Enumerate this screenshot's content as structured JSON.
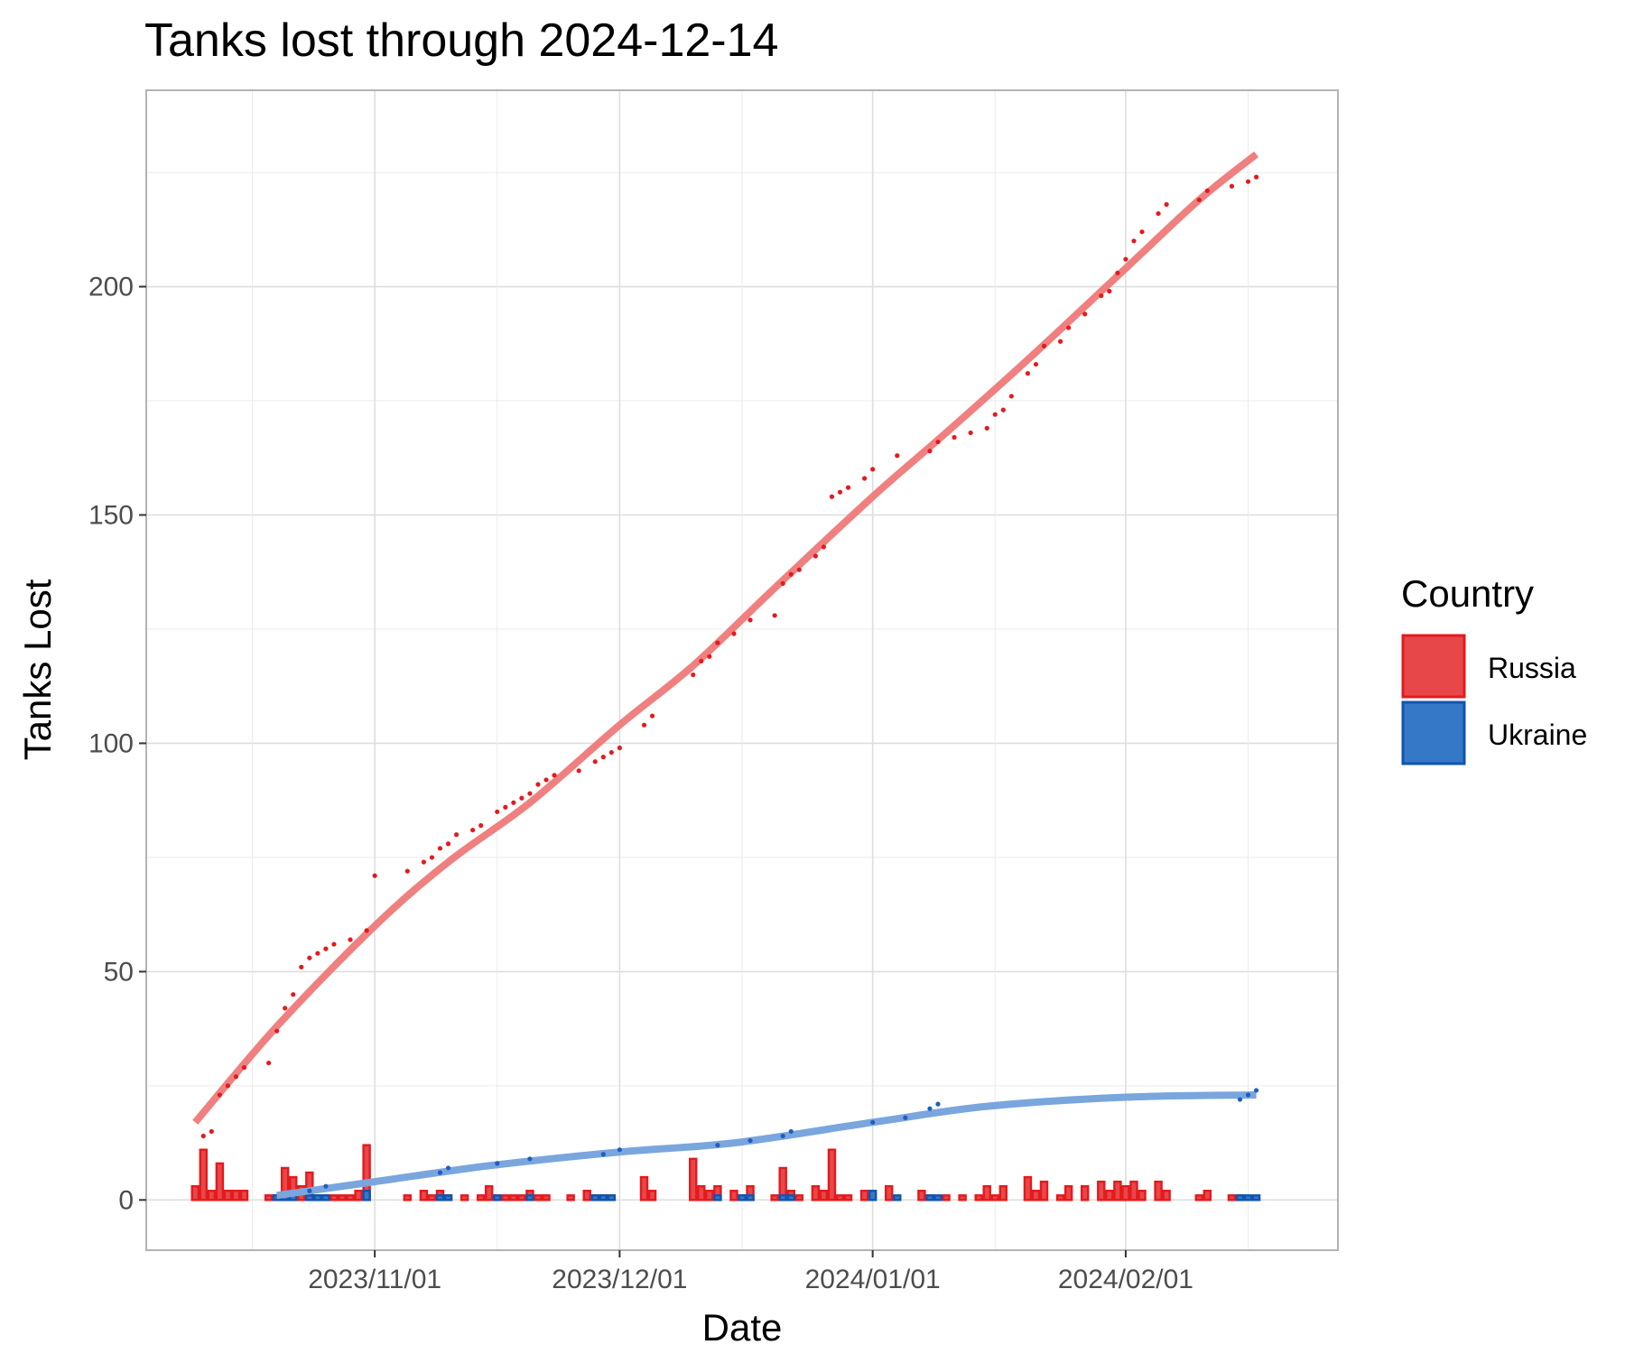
{
  "chart_data": {
    "type": "line",
    "title": "Tanks lost through 2024-12-14",
    "xlabel": "Date",
    "ylabel": "Tanks Lost",
    "x_ticks": [
      "2023/11/01",
      "2023/12/01",
      "2024/01/01",
      "2024/02/01"
    ],
    "y_ticks": [
      0,
      50,
      100,
      150,
      200
    ],
    "ylim": [
      -11,
      243
    ],
    "xlim": [
      "2023-10-04",
      "2024-02-27"
    ],
    "grid": true,
    "legend": {
      "title": "Country",
      "position": "right",
      "entries": [
        "Russia",
        "Ukraine"
      ]
    },
    "colors": {
      "Russia": "#E41A1C",
      "Ukraine": "#1E5FBF",
      "Russia_smooth": "#F08080",
      "Ukraine_smooth": "#7AA6DE"
    },
    "series": [
      {
        "name": "Russia",
        "daily": [
          [
            "2023-10-10",
            3
          ],
          [
            "2023-10-11",
            11
          ],
          [
            "2023-10-12",
            2
          ],
          [
            "2023-10-13",
            8
          ],
          [
            "2023-10-14",
            2
          ],
          [
            "2023-10-15",
            2
          ],
          [
            "2023-10-16",
            2
          ],
          [
            "2023-10-19",
            1
          ],
          [
            "2023-10-20",
            1
          ],
          [
            "2023-10-21",
            7
          ],
          [
            "2023-10-22",
            5
          ],
          [
            "2023-10-23",
            3
          ],
          [
            "2023-10-24",
            6
          ],
          [
            "2023-10-25",
            1
          ],
          [
            "2023-10-26",
            1
          ],
          [
            "2023-10-27",
            1
          ],
          [
            "2023-10-28",
            1
          ],
          [
            "2023-10-29",
            1
          ],
          [
            "2023-10-30",
            2
          ],
          [
            "2023-10-31",
            12
          ],
          [
            "2023-11-05",
            1
          ],
          [
            "2023-11-07",
            2
          ],
          [
            "2023-11-08",
            1
          ],
          [
            "2023-11-09",
            2
          ],
          [
            "2023-11-10",
            1
          ],
          [
            "2023-11-12",
            1
          ],
          [
            "2023-11-14",
            1
          ],
          [
            "2023-11-15",
            3
          ],
          [
            "2023-11-16",
            1
          ],
          [
            "2023-11-17",
            1
          ],
          [
            "2023-11-18",
            1
          ],
          [
            "2023-11-19",
            1
          ],
          [
            "2023-11-20",
            2
          ],
          [
            "2023-11-21",
            1
          ],
          [
            "2023-11-22",
            1
          ],
          [
            "2023-11-25",
            1
          ],
          [
            "2023-11-27",
            2
          ],
          [
            "2023-11-28",
            1
          ],
          [
            "2023-11-29",
            1
          ],
          [
            "2023-11-30",
            1
          ],
          [
            "2023-12-04",
            5
          ],
          [
            "2023-12-05",
            2
          ],
          [
            "2023-12-10",
            9
          ],
          [
            "2023-12-11",
            3
          ],
          [
            "2023-12-12",
            2
          ],
          [
            "2023-12-13",
            3
          ],
          [
            "2023-12-15",
            2
          ],
          [
            "2023-12-16",
            1
          ],
          [
            "2023-12-17",
            3
          ],
          [
            "2023-12-20",
            1
          ],
          [
            "2023-12-21",
            7
          ],
          [
            "2023-12-22",
            2
          ],
          [
            "2023-12-23",
            1
          ],
          [
            "2023-12-25",
            3
          ],
          [
            "2023-12-26",
            2
          ],
          [
            "2023-12-27",
            11
          ],
          [
            "2023-12-28",
            1
          ],
          [
            "2023-12-29",
            1
          ],
          [
            "2023-12-31",
            2
          ],
          [
            "2024-01-03",
            3
          ],
          [
            "2024-01-07",
            2
          ],
          [
            "2024-01-08",
            1
          ],
          [
            "2024-01-10",
            1
          ],
          [
            "2024-01-12",
            1
          ],
          [
            "2024-01-14",
            1
          ],
          [
            "2024-01-15",
            3
          ],
          [
            "2024-01-16",
            1
          ],
          [
            "2024-01-17",
            3
          ],
          [
            "2024-01-20",
            5
          ],
          [
            "2024-01-21",
            2
          ],
          [
            "2024-01-22",
            4
          ],
          [
            "2024-01-24",
            1
          ],
          [
            "2024-01-25",
            3
          ],
          [
            "2024-01-27",
            3
          ],
          [
            "2024-01-29",
            4
          ],
          [
            "2024-01-30",
            2
          ],
          [
            "2024-01-31",
            4
          ],
          [
            "2024-02-01",
            3
          ],
          [
            "2024-02-02",
            4
          ],
          [
            "2024-02-03",
            2
          ],
          [
            "2024-02-05",
            4
          ],
          [
            "2024-02-06",
            2
          ],
          [
            "2024-02-10",
            1
          ],
          [
            "2024-02-11",
            2
          ],
          [
            "2024-02-14",
            1
          ],
          [
            "2024-02-15",
            1
          ]
        ],
        "cumulative": [
          [
            "2023-10-11",
            14
          ],
          [
            "2023-10-12",
            15
          ],
          [
            "2023-10-13",
            23
          ],
          [
            "2023-10-14",
            25
          ],
          [
            "2023-10-15",
            27
          ],
          [
            "2023-10-16",
            29
          ],
          [
            "2023-10-19",
            30
          ],
          [
            "2023-10-20",
            37
          ],
          [
            "2023-10-21",
            42
          ],
          [
            "2023-10-22",
            45
          ],
          [
            "2023-10-23",
            51
          ],
          [
            "2023-10-24",
            53
          ],
          [
            "2023-10-25",
            54
          ],
          [
            "2023-10-26",
            55
          ],
          [
            "2023-10-27",
            56
          ],
          [
            "2023-10-29",
            57
          ],
          [
            "2023-10-31",
            59
          ],
          [
            "2023-11-01",
            71
          ],
          [
            "2023-11-05",
            72
          ],
          [
            "2023-11-07",
            74
          ],
          [
            "2023-11-08",
            75
          ],
          [
            "2023-11-09",
            77
          ],
          [
            "2023-11-10",
            78
          ],
          [
            "2023-11-11",
            80
          ],
          [
            "2023-11-13",
            81
          ],
          [
            "2023-11-14",
            82
          ],
          [
            "2023-11-16",
            85
          ],
          [
            "2023-11-17",
            86
          ],
          [
            "2023-11-18",
            87
          ],
          [
            "2023-11-19",
            88
          ],
          [
            "2023-11-20",
            89
          ],
          [
            "2023-11-21",
            91
          ],
          [
            "2023-11-22",
            92
          ],
          [
            "2023-11-23",
            93
          ],
          [
            "2023-11-26",
            94
          ],
          [
            "2023-11-28",
            96
          ],
          [
            "2023-11-29",
            97
          ],
          [
            "2023-11-30",
            98
          ],
          [
            "2023-12-01",
            99
          ],
          [
            "2023-12-04",
            104
          ],
          [
            "2023-12-05",
            106
          ],
          [
            "2023-12-10",
            115
          ],
          [
            "2023-12-11",
            118
          ],
          [
            "2023-12-12",
            119
          ],
          [
            "2023-12-13",
            122
          ],
          [
            "2023-12-15",
            124
          ],
          [
            "2023-12-17",
            127
          ],
          [
            "2023-12-20",
            128
          ],
          [
            "2023-12-21",
            135
          ],
          [
            "2023-12-22",
            137
          ],
          [
            "2023-12-23",
            138
          ],
          [
            "2023-12-25",
            141
          ],
          [
            "2023-12-26",
            143
          ],
          [
            "2023-12-27",
            154
          ],
          [
            "2023-12-28",
            155
          ],
          [
            "2023-12-29",
            156
          ],
          [
            "2023-12-31",
            158
          ],
          [
            "2024-01-01",
            160
          ],
          [
            "2024-01-04",
            163
          ],
          [
            "2024-01-08",
            164
          ],
          [
            "2024-01-09",
            166
          ],
          [
            "2024-01-11",
            167
          ],
          [
            "2024-01-13",
            168
          ],
          [
            "2024-01-15",
            169
          ],
          [
            "2024-01-16",
            172
          ],
          [
            "2024-01-17",
            173
          ],
          [
            "2024-01-18",
            176
          ],
          [
            "2024-01-20",
            181
          ],
          [
            "2024-01-21",
            183
          ],
          [
            "2024-01-22",
            187
          ],
          [
            "2024-01-24",
            188
          ],
          [
            "2024-01-25",
            191
          ],
          [
            "2024-01-27",
            194
          ],
          [
            "2024-01-29",
            198
          ],
          [
            "2024-01-30",
            199
          ],
          [
            "2024-01-31",
            203
          ],
          [
            "2024-02-01",
            206
          ],
          [
            "2024-02-02",
            210
          ],
          [
            "2024-02-03",
            212
          ],
          [
            "2024-02-05",
            216
          ],
          [
            "2024-02-06",
            218
          ],
          [
            "2024-02-10",
            219
          ],
          [
            "2024-02-11",
            221
          ],
          [
            "2024-02-14",
            222
          ],
          [
            "2024-02-16",
            223
          ],
          [
            "2024-02-17",
            224
          ]
        ],
        "smooth": [
          [
            "2023-10-10",
            17
          ],
          [
            "2023-10-20",
            38
          ],
          [
            "2023-11-01",
            60
          ],
          [
            "2023-11-10",
            74
          ],
          [
            "2023-11-20",
            87
          ],
          [
            "2023-12-01",
            104
          ],
          [
            "2023-12-10",
            117
          ],
          [
            "2023-12-20",
            134
          ],
          [
            "2024-01-01",
            154
          ],
          [
            "2024-01-10",
            168
          ],
          [
            "2024-01-20",
            184
          ],
          [
            "2024-02-01",
            204
          ],
          [
            "2024-02-10",
            219
          ],
          [
            "2024-02-17",
            229
          ]
        ]
      },
      {
        "name": "Ukraine",
        "daily": [
          [
            "2023-10-20",
            1
          ],
          [
            "2023-10-21",
            1
          ],
          [
            "2023-10-22",
            1
          ],
          [
            "2023-10-24",
            1
          ],
          [
            "2023-10-25",
            1
          ],
          [
            "2023-10-26",
            1
          ],
          [
            "2023-10-31",
            2
          ],
          [
            "2023-11-09",
            1
          ],
          [
            "2023-11-10",
            1
          ],
          [
            "2023-11-16",
            1
          ],
          [
            "2023-11-20",
            1
          ],
          [
            "2023-11-28",
            1
          ],
          [
            "2023-11-29",
            1
          ],
          [
            "2023-11-30",
            1
          ],
          [
            "2023-12-13",
            1
          ],
          [
            "2023-12-16",
            1
          ],
          [
            "2023-12-17",
            1
          ],
          [
            "2023-12-21",
            1
          ],
          [
            "2023-12-22",
            1
          ],
          [
            "2024-01-01",
            2
          ],
          [
            "2024-01-04",
            1
          ],
          [
            "2024-01-08",
            1
          ],
          [
            "2024-01-09",
            1
          ],
          [
            "2024-02-15",
            1
          ],
          [
            "2024-02-16",
            1
          ],
          [
            "2024-02-17",
            1
          ]
        ],
        "cumulative": [
          [
            "2023-10-24",
            2
          ],
          [
            "2023-10-26",
            3
          ],
          [
            "2023-11-09",
            6
          ],
          [
            "2023-11-10",
            7
          ],
          [
            "2023-11-16",
            8
          ],
          [
            "2023-11-20",
            9
          ],
          [
            "2023-11-29",
            10
          ],
          [
            "2023-12-01",
            11
          ],
          [
            "2023-12-13",
            12
          ],
          [
            "2023-12-17",
            13
          ],
          [
            "2023-12-21",
            14
          ],
          [
            "2023-12-22",
            15
          ],
          [
            "2024-01-01",
            17
          ],
          [
            "2024-01-05",
            18
          ],
          [
            "2024-01-08",
            20
          ],
          [
            "2024-01-09",
            21
          ],
          [
            "2024-02-15",
            22
          ],
          [
            "2024-02-16",
            23
          ],
          [
            "2024-02-17",
            24
          ]
        ],
        "smooth": [
          [
            "2023-10-20",
            1
          ],
          [
            "2023-11-01",
            4
          ],
          [
            "2023-11-15",
            7.5
          ],
          [
            "2023-12-01",
            10.5
          ],
          [
            "2023-12-15",
            12.5
          ],
          [
            "2024-01-01",
            17
          ],
          [
            "2024-01-15",
            20.5
          ],
          [
            "2024-02-01",
            22.5
          ],
          [
            "2024-02-17",
            23
          ]
        ]
      }
    ]
  }
}
